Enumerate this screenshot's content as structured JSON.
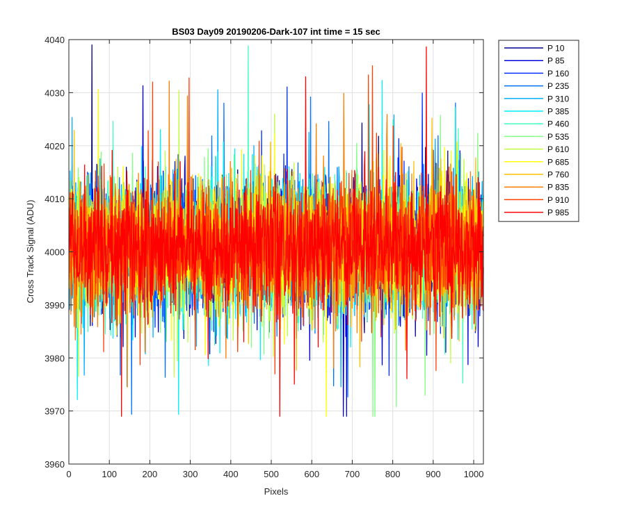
{
  "chart_data": {
    "type": "line",
    "title": "BS03 Day09 20190206-Dark-107 int time = 15 sec",
    "xlabel": "Pixels",
    "ylabel": "Cross Track Signal (ADU)",
    "xlim": [
      0,
      1024
    ],
    "ylim": [
      3960,
      4040
    ],
    "xticks": [
      0,
      100,
      200,
      300,
      400,
      500,
      600,
      700,
      800,
      900,
      1000
    ],
    "yticks": [
      3960,
      3970,
      3980,
      3990,
      4000,
      4010,
      4020,
      4030,
      4040
    ],
    "grid": true,
    "legend_position": "outside-top-right",
    "n_points": 1024,
    "signal_model": {
      "mean": 4001,
      "stdev": 6,
      "min_observed": 3969,
      "max_observed": 4039
    },
    "series": [
      {
        "name": "P 10",
        "color": "#00008F"
      },
      {
        "name": "P 85",
        "color": "#0000DF"
      },
      {
        "name": "P 160",
        "color": "#0030FF"
      },
      {
        "name": "P 235",
        "color": "#0070FF"
      },
      {
        "name": "P 310",
        "color": "#00B0FF"
      },
      {
        "name": "P 385",
        "color": "#00F0FF"
      },
      {
        "name": "P 460",
        "color": "#40FFBF"
      },
      {
        "name": "P 535",
        "color": "#80FF80"
      },
      {
        "name": "P 610",
        "color": "#BFFF40"
      },
      {
        "name": "P 685",
        "color": "#FFFF00"
      },
      {
        "name": "P 760",
        "color": "#FFBF00"
      },
      {
        "name": "P 835",
        "color": "#FF7F00"
      },
      {
        "name": "P 910",
        "color": "#FF3F00"
      },
      {
        "name": "P 985",
        "color": "#FF0000"
      }
    ]
  }
}
